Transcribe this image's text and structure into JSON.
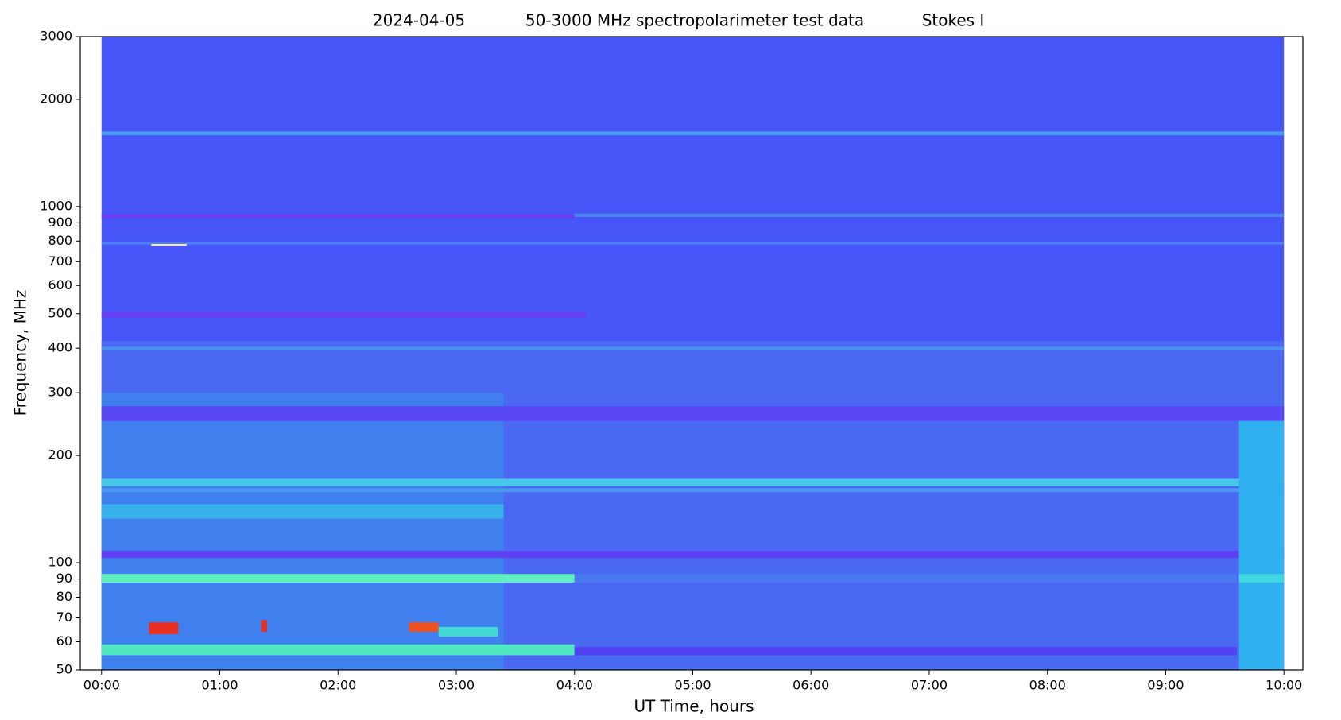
{
  "chart_data": {
    "type": "spectrogram",
    "title": [
      "2024-04-05",
      "50-3000 MHz spectropolarimeter test data",
      "Stokes I"
    ],
    "xlabel": "UT Time, hours",
    "ylabel": "Frequency, MHz",
    "ylog": true,
    "xlim": [
      -0.18,
      10.16
    ],
    "ylim": [
      50,
      3000
    ],
    "xticks": [
      {
        "value": 0,
        "label": "00:00"
      },
      {
        "value": 1,
        "label": "01:00"
      },
      {
        "value": 2,
        "label": "02:00"
      },
      {
        "value": 3,
        "label": "03:00"
      },
      {
        "value": 4,
        "label": "04:00"
      },
      {
        "value": 5,
        "label": "05:00"
      },
      {
        "value": 6,
        "label": "06:00"
      },
      {
        "value": 7,
        "label": "07:00"
      },
      {
        "value": 8,
        "label": "08:00"
      },
      {
        "value": 9,
        "label": "09:00"
      },
      {
        "value": 10,
        "label": "10:00"
      }
    ],
    "yticks": [
      50,
      60,
      70,
      80,
      90,
      100,
      200,
      300,
      400,
      500,
      600,
      700,
      800,
      900,
      1000,
      2000,
      3000
    ],
    "bands": [
      {
        "t": [
          0,
          10
        ],
        "f": [
          50,
          3000
        ],
        "color": "#4656f8"
      },
      {
        "t": [
          0,
          10
        ],
        "f": [
          50,
          420
        ],
        "color": "#4a68f2"
      },
      {
        "t": [
          0,
          3.4
        ],
        "f": [
          50,
          300
        ],
        "color": "#4080ee"
      },
      {
        "t": [
          0,
          10
        ],
        "f": [
          1585,
          1625
        ],
        "color": "#4a9af0"
      },
      {
        "t": [
          0,
          4
        ],
        "f": [
          928,
          952
        ],
        "color": "#6a3ef2"
      },
      {
        "t": [
          4,
          10
        ],
        "f": [
          935,
          955
        ],
        "color": "#4a88f0"
      },
      {
        "t": [
          0,
          10
        ],
        "f": [
          782,
          796
        ],
        "color": "#4a80f0"
      },
      {
        "t": [
          0.42,
          0.72
        ],
        "f": [
          775,
          785
        ],
        "color": "#f8e8b0"
      },
      {
        "t": [
          0,
          4.1
        ],
        "f": [
          488,
          506
        ],
        "color": "#6a3ef5"
      },
      {
        "t": [
          0,
          10
        ],
        "f": [
          396,
          404
        ],
        "color": "#4a90f0"
      },
      {
        "t": [
          0,
          10
        ],
        "f": [
          250,
          275
        ],
        "color": "#5a48f5"
      },
      {
        "t": [
          0,
          10
        ],
        "f": [
          164,
          172
        ],
        "color": "#48c8e8"
      },
      {
        "t": [
          0,
          10
        ],
        "f": [
          158,
          162
        ],
        "color": "#4898f0"
      },
      {
        "t": [
          0,
          3.4
        ],
        "f": [
          133,
          146
        ],
        "color": "#38b0ec"
      },
      {
        "t": [
          0,
          10
        ],
        "f": [
          103,
          108
        ],
        "color": "#6040f5"
      },
      {
        "t": [
          0,
          4
        ],
        "f": [
          88,
          93
        ],
        "color": "#60f0c0"
      },
      {
        "t": [
          4,
          9.6
        ],
        "f": [
          88,
          93
        ],
        "color": "#4a78f0"
      },
      {
        "t": [
          0.4,
          0.65
        ],
        "f": [
          63,
          68
        ],
        "color": "#e83020"
      },
      {
        "t": [
          1.35,
          1.4
        ],
        "f": [
          64,
          69
        ],
        "color": "#e83020"
      },
      {
        "t": [
          2.6,
          2.85
        ],
        "f": [
          64,
          68
        ],
        "color": "#f05020"
      },
      {
        "t": [
          2.85,
          3.35
        ],
        "f": [
          62,
          66
        ],
        "color": "#40d8d0"
      },
      {
        "t": [
          0,
          4
        ],
        "f": [
          55,
          59
        ],
        "color": "#50e8c0"
      },
      {
        "t": [
          4,
          9.6
        ],
        "f": [
          55,
          58
        ],
        "color": "#5040f0"
      },
      {
        "t": [
          9.62,
          10
        ],
        "f": [
          50,
          250
        ],
        "color": "#30b0ee"
      },
      {
        "t": [
          9.62,
          10
        ],
        "f": [
          88,
          93
        ],
        "color": "#40d8e0"
      }
    ]
  }
}
